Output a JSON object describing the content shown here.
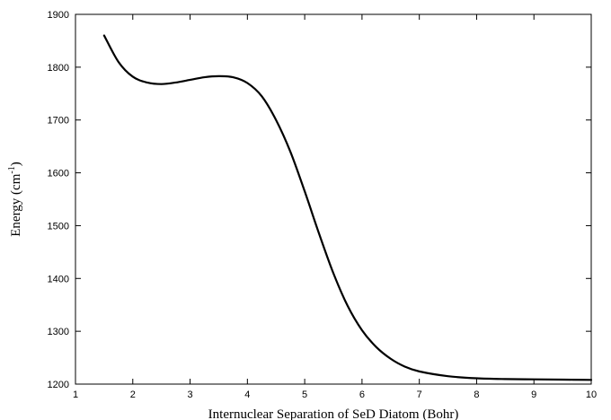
{
  "chart_data": {
    "type": "line",
    "title": "",
    "xlabel": "Internuclear Separation of SeD Diatom (Bohr)",
    "ylabel": {
      "main": "Energy (cm",
      "superscript": "-1",
      "close": ")"
    },
    "xlim": [
      1,
      10
    ],
    "ylim": [
      1200,
      1900
    ],
    "x_ticks": [
      1,
      2,
      3,
      4,
      5,
      6,
      7,
      8,
      9,
      10
    ],
    "y_ticks": [
      1200,
      1300,
      1400,
      1500,
      1600,
      1700,
      1800,
      1900
    ],
    "grid": false,
    "legend": "none",
    "series": [
      {
        "color": "#000000",
        "x": [
          1.5,
          1.75,
          2.0,
          2.25,
          2.5,
          2.75,
          3.0,
          3.25,
          3.5,
          3.75,
          4.0,
          4.25,
          4.5,
          4.75,
          5.0,
          5.25,
          5.5,
          5.75,
          6.0,
          6.25,
          6.5,
          6.75,
          7.0,
          7.5,
          8.0,
          8.5,
          9.0,
          9.5,
          10.0
        ],
        "y": [
          1860,
          1810,
          1782,
          1771,
          1768,
          1771,
          1776,
          1781,
          1783,
          1781,
          1770,
          1745,
          1700,
          1640,
          1565,
          1485,
          1410,
          1348,
          1302,
          1270,
          1248,
          1233,
          1224,
          1215,
          1211,
          1209.5,
          1209,
          1208.5,
          1208
        ]
      }
    ]
  }
}
